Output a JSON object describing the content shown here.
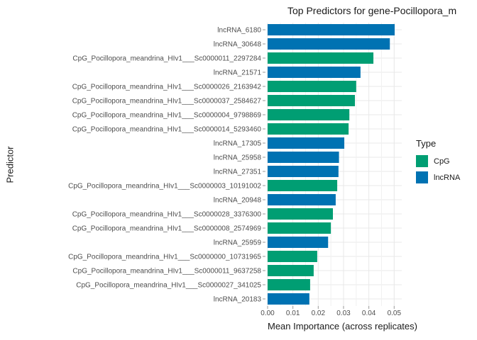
{
  "title": "Top Predictors for gene-Pocillopora_m",
  "axes": {
    "x_title": "Mean Importance (across replicates)",
    "y_title": "Predictor",
    "x_tick_labels": [
      "0.00",
      "0.01",
      "0.02",
      "0.03",
      "0.04",
      "0.05"
    ]
  },
  "legend": {
    "title": "Type",
    "items": [
      {
        "label": "CpG",
        "color": "#009E73"
      },
      {
        "label": "lncRNA",
        "color": "#0072B2"
      }
    ]
  },
  "chart_data": {
    "type": "bar",
    "orientation": "horizontal",
    "title": "Top Predictors for gene-Pocillopora_m",
    "xlabel": "Mean Importance (across replicates)",
    "ylabel": "Predictor",
    "xlim": [
      0,
      0.053
    ],
    "x_major_ticks": [
      0,
      0.01,
      0.02,
      0.03,
      0.04,
      0.05
    ],
    "x_minor_ticks": [
      0.005,
      0.015,
      0.025,
      0.035,
      0.045
    ],
    "grid": true,
    "legend_position": "right",
    "series_key": "Type",
    "colors": {
      "CpG": "#009E73",
      "lncRNA": "#0072B2"
    },
    "bars": [
      {
        "label": "lncRNA_6180",
        "type": "lncRNA",
        "value": 0.0502
      },
      {
        "label": "lncRNA_30648",
        "type": "lncRNA",
        "value": 0.0483
      },
      {
        "label": "CpG_Pocillopora_meandrina_HIv1___Sc0000011_2297284",
        "type": "CpG",
        "value": 0.0418
      },
      {
        "label": "lncRNA_21571",
        "type": "lncRNA",
        "value": 0.0367
      },
      {
        "label": "CpG_Pocillopora_meandrina_HIv1___Sc0000026_2163942",
        "type": "CpG",
        "value": 0.035
      },
      {
        "label": "CpG_Pocillopora_meandrina_HIv1___Sc0000037_2584627",
        "type": "CpG",
        "value": 0.0345
      },
      {
        "label": "CpG_Pocillopora_meandrina_HIv1___Sc0000004_9798869",
        "type": "CpG",
        "value": 0.0323
      },
      {
        "label": "CpG_Pocillopora_meandrina_HIv1___Sc0000014_5293460",
        "type": "CpG",
        "value": 0.032
      },
      {
        "label": "lncRNA_17305",
        "type": "lncRNA",
        "value": 0.0303
      },
      {
        "label": "lncRNA_25958",
        "type": "lncRNA",
        "value": 0.0282
      },
      {
        "label": "lncRNA_27351",
        "type": "lncRNA",
        "value": 0.028
      },
      {
        "label": "CpG_Pocillopora_meandrina_HIv1___Sc0000003_10191002",
        "type": "CpG",
        "value": 0.0275
      },
      {
        "label": "lncRNA_20948",
        "type": "lncRNA",
        "value": 0.0269
      },
      {
        "label": "CpG_Pocillopora_meandrina_HIv1___Sc0000028_3376300",
        "type": "CpG",
        "value": 0.0258
      },
      {
        "label": "CpG_Pocillopora_meandrina_HIv1___Sc0000008_2574969",
        "type": "CpG",
        "value": 0.025
      },
      {
        "label": "lncRNA_25959",
        "type": "lncRNA",
        "value": 0.0239
      },
      {
        "label": "CpG_Pocillopora_meandrina_HIv1___Sc0000000_10731965",
        "type": "CpG",
        "value": 0.0196
      },
      {
        "label": "CpG_Pocillopora_meandrina_HIv1___Sc0000011_9637258",
        "type": "CpG",
        "value": 0.0182
      },
      {
        "label": "CpG_Pocillopora_meandrina_HIv1___Sc0000027_341025",
        "type": "CpG",
        "value": 0.0168
      },
      {
        "label": "lncRNA_20183",
        "type": "lncRNA",
        "value": 0.0165
      }
    ],
    "style": {
      "grid_major_color": "#e8e8e8",
      "grid_minor_color": "#f1f1f1",
      "tick_mark_color": "#999999",
      "axis_text_color": "#4d4d4d",
      "background": "#ffffff"
    }
  }
}
